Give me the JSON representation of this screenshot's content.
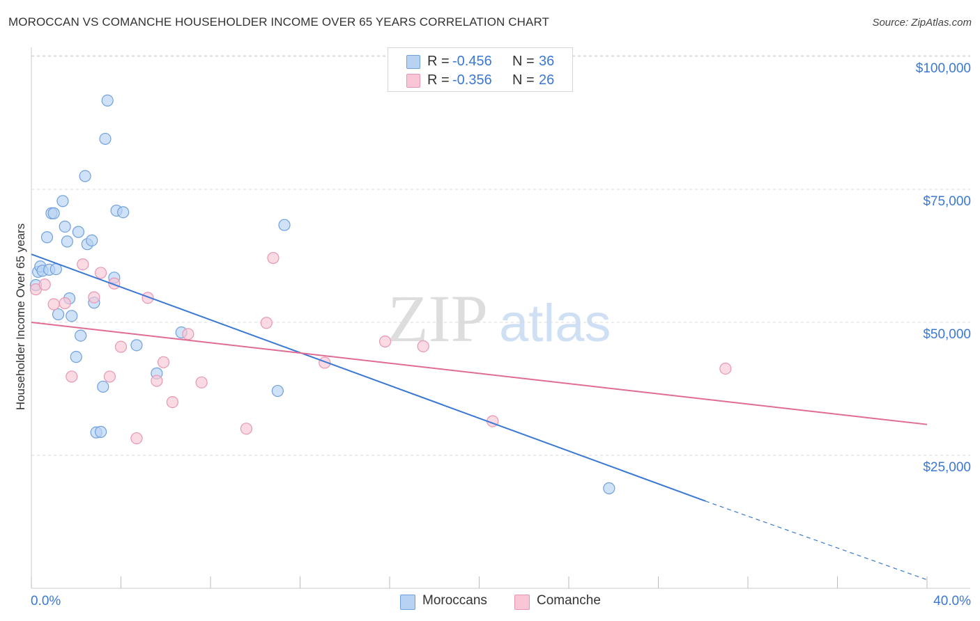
{
  "header": {
    "title": "MOROCCAN VS COMANCHE HOUSEHOLDER INCOME OVER 65 YEARS CORRELATION CHART",
    "source": "Source: ZipAtlas.com"
  },
  "legend": {
    "rows": [
      {
        "r_label": "R =",
        "r_value": "-0.456",
        "n_label": "N =",
        "n_value": "36"
      },
      {
        "r_label": "R =",
        "r_value": "-0.356",
        "n_label": "N =",
        "n_value": "26"
      }
    ]
  },
  "bottom_legend": {
    "items": [
      {
        "label": "Moroccans"
      },
      {
        "label": "Comanche"
      }
    ]
  },
  "watermark": {
    "zip": "ZIP",
    "atlas": "atlas"
  },
  "colors": {
    "moroccans_fill": "#b7d2f2",
    "moroccans_stroke": "#6fa0dd",
    "moroccans_line": "#3a78d4",
    "comanche_fill": "#f8c6d4",
    "comanche_stroke": "#e996b0",
    "comanche_line": "#e06b95",
    "axis_text": "#3a78d4",
    "grid": "#d9d9d9"
  },
  "chart_data": {
    "type": "scatter",
    "title": "MOROCCAN VS COMANCHE HOUSEHOLDER INCOME OVER 65 YEARS CORRELATION CHART",
    "xlabel": "",
    "ylabel": "Householder Income Over 65 years",
    "xlim": [
      0,
      40
    ],
    "ylim": [
      0,
      105000
    ],
    "x_tick_labels": [
      "0.0%",
      "40.0%"
    ],
    "y_ticks": [
      25000,
      50000,
      75000,
      100000
    ],
    "y_tick_labels": [
      "$25,000",
      "$50,000",
      "$75,000",
      "$100,000"
    ],
    "grid": true,
    "legend_position": "top-center",
    "series": [
      {
        "name": "Moroccans",
        "points": [
          [
            0.2,
            57000
          ],
          [
            0.3,
            59500
          ],
          [
            0.4,
            60500
          ],
          [
            0.5,
            59700
          ],
          [
            0.7,
            66000
          ],
          [
            0.8,
            59900
          ],
          [
            0.9,
            70500
          ],
          [
            1.0,
            70500
          ],
          [
            1.1,
            60000
          ],
          [
            1.2,
            51500
          ],
          [
            1.4,
            72800
          ],
          [
            1.5,
            68000
          ],
          [
            1.6,
            65200
          ],
          [
            1.7,
            54500
          ],
          [
            1.8,
            51200
          ],
          [
            2.0,
            43500
          ],
          [
            2.1,
            67000
          ],
          [
            2.2,
            47500
          ],
          [
            2.4,
            77500
          ],
          [
            2.5,
            64700
          ],
          [
            2.7,
            65400
          ],
          [
            2.8,
            53700
          ],
          [
            2.9,
            29300
          ],
          [
            3.1,
            29400
          ],
          [
            3.2,
            37900
          ],
          [
            3.3,
            84500
          ],
          [
            3.4,
            91700
          ],
          [
            3.7,
            58400
          ],
          [
            3.8,
            71000
          ],
          [
            4.1,
            70700
          ],
          [
            4.7,
            45700
          ],
          [
            5.6,
            40400
          ],
          [
            6.7,
            48100
          ],
          [
            11.0,
            37100
          ],
          [
            11.3,
            68300
          ],
          [
            25.8,
            18800
          ]
        ]
      },
      {
        "name": "Comanche",
        "points": [
          [
            0.2,
            56200
          ],
          [
            0.6,
            57100
          ],
          [
            1.0,
            53400
          ],
          [
            1.5,
            53600
          ],
          [
            1.8,
            39800
          ],
          [
            2.3,
            60900
          ],
          [
            2.8,
            54700
          ],
          [
            3.1,
            59300
          ],
          [
            3.5,
            39800
          ],
          [
            3.7,
            57300
          ],
          [
            4.0,
            45400
          ],
          [
            4.7,
            28200
          ],
          [
            5.2,
            54600
          ],
          [
            5.6,
            39000
          ],
          [
            5.9,
            42500
          ],
          [
            6.3,
            35000
          ],
          [
            7.0,
            47800
          ],
          [
            7.6,
            38700
          ],
          [
            9.6,
            30000
          ],
          [
            10.5,
            49900
          ],
          [
            10.8,
            62100
          ],
          [
            13.1,
            42400
          ],
          [
            15.8,
            46400
          ],
          [
            17.5,
            45500
          ],
          [
            20.6,
            31400
          ],
          [
            31.0,
            41300
          ]
        ]
      }
    ],
    "trend_lines": [
      {
        "series": "Moroccans",
        "x": [
          0,
          30.1
        ],
        "y": [
          62800,
          16400
        ],
        "dashed_extension_to": [
          40,
          1600
        ]
      },
      {
        "series": "Comanche",
        "x": [
          0,
          40
        ],
        "y": [
          50000,
          30800
        ]
      }
    ]
  }
}
